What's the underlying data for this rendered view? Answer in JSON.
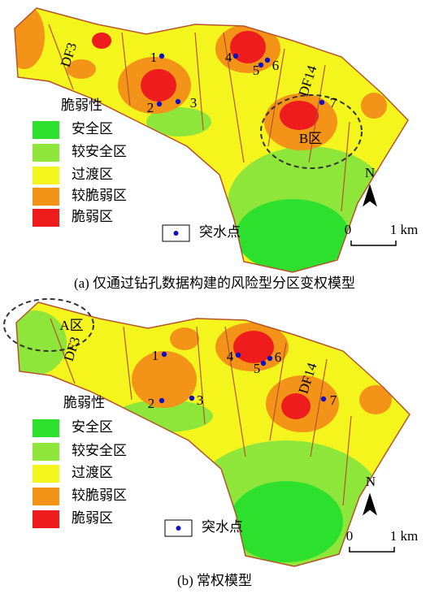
{
  "panels": [
    {
      "caption": "(a)  仅通过钻孔数据构建的风险型分区变权模型",
      "legend_title": "脆弱性",
      "legend": [
        {
          "label": "安全区",
          "color": "#2ee02e"
        },
        {
          "label": "较安全区",
          "color": "#8ee63a"
        },
        {
          "label": "过渡区",
          "color": "#f5f51e"
        },
        {
          "label": "较脆弱区",
          "color": "#f39419"
        },
        {
          "label": "脆弱区",
          "color": "#ee1c1c"
        }
      ],
      "water_point": "突水点",
      "points": [
        "1",
        "2",
        "3",
        "4",
        "5",
        "6",
        "7"
      ],
      "faults": [
        "DF3",
        "DF14"
      ],
      "zone": "B区",
      "scale": [
        "0",
        "1 km"
      ],
      "north": "N"
    },
    {
      "caption": "(b)  常权模型",
      "legend_title": "脆弱性",
      "legend": [
        {
          "label": "安全区",
          "color": "#2ee02e"
        },
        {
          "label": "较安全区",
          "color": "#8ee63a"
        },
        {
          "label": "过渡区",
          "color": "#f5f51e"
        },
        {
          "label": "较脆弱区",
          "color": "#f39419"
        },
        {
          "label": "脆弱区",
          "color": "#ee1c1c"
        }
      ],
      "water_point": "突水点",
      "points": [
        "1",
        "2",
        "3",
        "4",
        "5",
        "6",
        "7"
      ],
      "faults": [
        "DF3",
        "DF14"
      ],
      "zone": "A区",
      "scale": [
        "0",
        "1 km"
      ],
      "north": "N"
    }
  ]
}
